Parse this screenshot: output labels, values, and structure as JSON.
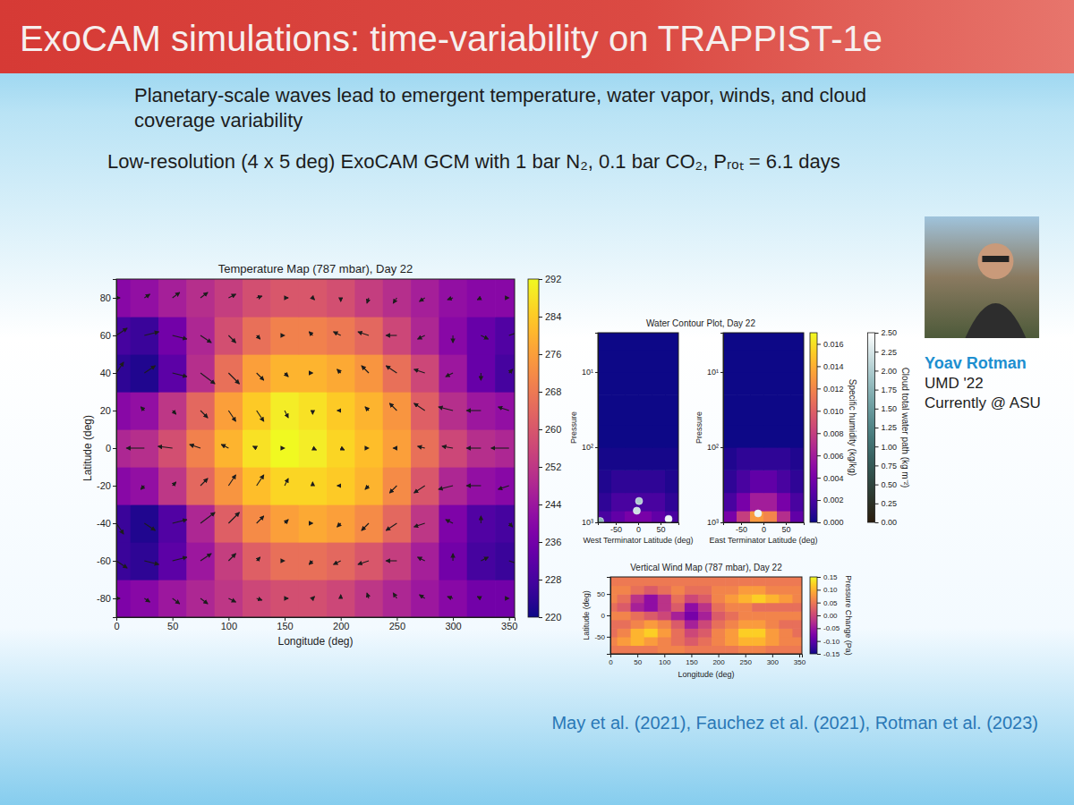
{
  "slide": {
    "title": "ExoCAM simulations: time-variability on TRAPPIST-1e",
    "subtitle": "Planetary-scale waves lead to emergent temperature, water vapor, winds, and cloud coverage variability",
    "description": "Low-resolution (4 x 5 deg) ExoCAM GCM with 1 bar N₂, 0.1 bar CO₂, Pᵣₒₜ = 6.1 days",
    "person": {
      "name": "Yoav Rotman",
      "lines": [
        "UMD '22",
        "Currently @ ASU"
      ]
    },
    "references": "May et al. (2021), Fauchez et al. (2021), Rotman et al. (2023)"
  },
  "chart_data": [
    {
      "type": "heatmap",
      "title": "Temperature Map (787 mbar), Day 22",
      "x_label": "Longitude (deg)",
      "y_label": "Latitude (deg)",
      "x": [
        0,
        25,
        50,
        75,
        100,
        125,
        150,
        175,
        200,
        225,
        250,
        275,
        300,
        325,
        350
      ],
      "y": [
        -80,
        -60,
        -40,
        -20,
        0,
        20,
        40,
        60,
        80
      ],
      "cells": [
        [
          238,
          240,
          244,
          248,
          252,
          256,
          258,
          258,
          256,
          252,
          248,
          244,
          240,
          236,
          236
        ],
        [
          226,
          224,
          232,
          244,
          254,
          262,
          266,
          266,
          264,
          260,
          254,
          246,
          236,
          228,
          226
        ],
        [
          226,
          222,
          230,
          248,
          262,
          272,
          276,
          278,
          276,
          272,
          264,
          252,
          238,
          230,
          228
        ],
        [
          240,
          242,
          252,
          264,
          274,
          282,
          286,
          286,
          284,
          280,
          272,
          260,
          248,
          242,
          240
        ],
        [
          248,
          250,
          258,
          270,
          280,
          288,
          292,
          290,
          286,
          282,
          276,
          266,
          256,
          250,
          248
        ],
        [
          240,
          242,
          252,
          264,
          276,
          284,
          290,
          288,
          284,
          280,
          274,
          262,
          250,
          244,
          242
        ],
        [
          224,
          222,
          232,
          250,
          266,
          276,
          280,
          280,
          278,
          274,
          266,
          256,
          244,
          234,
          228
        ],
        [
          228,
          226,
          236,
          248,
          258,
          266,
          270,
          270,
          268,
          264,
          256,
          248,
          240,
          234,
          230
        ],
        [
          240,
          242,
          246,
          250,
          254,
          258,
          260,
          260,
          258,
          254,
          250,
          246,
          242,
          240,
          240
        ]
      ],
      "wind_u": [
        [
          2,
          3,
          4,
          4,
          4,
          3,
          2,
          1,
          0,
          -1,
          -2,
          -3,
          -3,
          -2,
          0
        ],
        [
          6,
          8,
          8,
          6,
          4,
          2,
          0,
          -2,
          -4,
          -6,
          -6,
          -4,
          0,
          4,
          6
        ],
        [
          4,
          6,
          8,
          8,
          6,
          4,
          2,
          0,
          -2,
          -4,
          -6,
          -6,
          -4,
          0,
          2
        ],
        [
          -4,
          -2,
          2,
          4,
          4,
          4,
          2,
          0,
          -2,
          -2,
          -4,
          -6,
          -8,
          -8,
          -6
        ],
        [
          -10,
          -10,
          -8,
          -6,
          -4,
          -2,
          0,
          2,
          2,
          0,
          -2,
          -4,
          -6,
          -8,
          -10
        ],
        [
          -4,
          -2,
          2,
          4,
          4,
          4,
          2,
          0,
          -2,
          -2,
          -4,
          -6,
          -8,
          -8,
          -6
        ],
        [
          4,
          6,
          8,
          8,
          6,
          4,
          2,
          0,
          -2,
          -4,
          -6,
          -6,
          -4,
          0,
          2
        ],
        [
          6,
          8,
          8,
          6,
          4,
          2,
          0,
          -2,
          -4,
          -6,
          -6,
          -4,
          0,
          4,
          6
        ],
        [
          2,
          3,
          4,
          4,
          4,
          3,
          2,
          1,
          0,
          -1,
          -2,
          -3,
          -3,
          -2,
          0
        ]
      ],
      "wind_v": [
        [
          0,
          -2,
          -3,
          -3,
          -2,
          -1,
          0,
          1,
          2,
          3,
          3,
          2,
          1,
          1,
          0
        ],
        [
          -4,
          -2,
          2,
          4,
          4,
          2,
          0,
          -2,
          -2,
          -2,
          0,
          2,
          4,
          2,
          -2
        ],
        [
          -6,
          -4,
          2,
          6,
          6,
          4,
          2,
          0,
          -2,
          -4,
          -4,
          -2,
          2,
          4,
          -2
        ],
        [
          -4,
          -2,
          2,
          4,
          6,
          6,
          4,
          2,
          0,
          -2,
          -4,
          -4,
          -2,
          0,
          -2
        ],
        [
          0,
          0,
          1,
          2,
          2,
          1,
          0,
          -1,
          -1,
          0,
          0,
          1,
          1,
          0,
          0
        ],
        [
          4,
          2,
          -2,
          -4,
          -6,
          -6,
          -4,
          -2,
          0,
          2,
          4,
          4,
          2,
          0,
          2
        ],
        [
          6,
          4,
          -2,
          -6,
          -6,
          -4,
          -2,
          0,
          2,
          4,
          4,
          2,
          -2,
          -4,
          2
        ],
        [
          4,
          2,
          -2,
          -4,
          -4,
          -2,
          0,
          2,
          2,
          2,
          0,
          -2,
          -4,
          -2,
          2
        ],
        [
          0,
          2,
          3,
          3,
          2,
          1,
          0,
          -1,
          -2,
          -3,
          -3,
          -2,
          -1,
          -1,
          0
        ]
      ],
      "xlim": [
        0,
        355
      ],
      "ylim": [
        -90,
        90
      ],
      "xticks": [
        0,
        50,
        100,
        150,
        200,
        250,
        300,
        350
      ],
      "yticks": [
        -80,
        -60,
        -40,
        -20,
        0,
        20,
        40,
        60,
        80
      ],
      "colorbar": {
        "lim": [
          220,
          292
        ],
        "ticks": [
          220,
          228,
          236,
          244,
          252,
          260,
          268,
          276,
          284,
          292
        ]
      }
    },
    {
      "type": "heatmap",
      "title": "Water Contour Plot, Day 22",
      "x_label": "West Terminator Latitude (deg)",
      "y_label": "Pressure",
      "log": "y",
      "x_edges": [
        -90,
        -60,
        -30,
        0,
        30,
        60,
        90
      ],
      "y_edges": [
        1000,
        700,
        400,
        200,
        100,
        50,
        20,
        10,
        5,
        3
      ],
      "cells": [
        [
          0.002,
          0.003,
          0.004,
          0.004,
          0.003,
          0.002
        ],
        [
          0.001,
          0.002,
          0.002,
          0.002,
          0.002,
          0.001
        ],
        [
          0.0005,
          0.001,
          0.001,
          0.001,
          0.001,
          0.0005
        ],
        [
          0.0002,
          0.0002,
          0.0002,
          0.0002,
          0.0002,
          0.0002
        ],
        [
          0,
          0,
          0,
          0,
          0,
          0
        ],
        [
          0,
          0,
          0,
          0,
          0,
          0
        ],
        [
          0,
          0,
          0,
          0,
          0,
          0
        ],
        [
          0,
          0,
          0,
          0,
          0,
          0
        ],
        [
          0,
          0,
          0,
          0,
          0,
          0
        ]
      ],
      "clouds": {
        "lat": [
          -3,
          2,
          68,
          -85
        ],
        "pressure": [
          700,
          520,
          900,
          960
        ],
        "values": [
          2.2,
          2.0,
          2.4,
          1.8
        ]
      },
      "xlim": [
        -90,
        90
      ],
      "ylim": [
        3,
        1000
      ],
      "xticks": [
        -50,
        0,
        50
      ],
      "yticks": [
        {
          "value": 10,
          "label": "10¹"
        },
        {
          "value": 100,
          "label": "10²"
        },
        {
          "value": 1000,
          "label": "10³"
        }
      ]
    },
    {
      "type": "heatmap",
      "x_label": "East Terminator Latitude (deg)",
      "y_label": "Pressure",
      "log": "y",
      "x_edges": [
        -90,
        -60,
        -30,
        0,
        30,
        60,
        90
      ],
      "y_edges": [
        1000,
        700,
        400,
        200,
        100,
        50,
        20,
        10,
        5,
        3
      ],
      "cells": [
        [
          0.004,
          0.008,
          0.013,
          0.012,
          0.007,
          0.003
        ],
        [
          0.002,
          0.004,
          0.006,
          0.006,
          0.004,
          0.002
        ],
        [
          0.001,
          0.002,
          0.003,
          0.003,
          0.002,
          0.001
        ],
        [
          0.0005,
          0.001,
          0.001,
          0.001,
          0.001,
          0.0005
        ],
        [
          0,
          0,
          0,
          0,
          0,
          0
        ],
        [
          0,
          0,
          0,
          0,
          0,
          0
        ],
        [
          0,
          0,
          0,
          0,
          0,
          0
        ],
        [
          0,
          0,
          0,
          0,
          0,
          0
        ],
        [
          0,
          0,
          0,
          0,
          0,
          0
        ]
      ],
      "clouds": {
        "lat": [
          -12
        ],
        "pressure": [
          760
        ],
        "values": [
          2.4
        ]
      },
      "xlim": [
        -90,
        90
      ],
      "ylim": [
        3,
        1000
      ],
      "xticks": [
        -50,
        0,
        50
      ],
      "yticks": [
        {
          "value": 10,
          "label": "10¹"
        },
        {
          "value": 100,
          "label": "10²"
        },
        {
          "value": 1000,
          "label": "10³"
        }
      ],
      "colorbar": {
        "label": "Specific humidity (kg/kg)",
        "lim": [
          0,
          0.017
        ],
        "ticks": [
          {
            "value": 0,
            "label": "0.000"
          },
          {
            "value": 0.002,
            "label": "0.002"
          },
          {
            "value": 0.004,
            "label": "0.004"
          },
          {
            "value": 0.006,
            "label": "0.006"
          },
          {
            "value": 0.008,
            "label": "0.008"
          },
          {
            "value": 0.01,
            "label": "0.010"
          },
          {
            "value": 0.012,
            "label": "0.012"
          },
          {
            "value": 0.014,
            "label": "0.014"
          },
          {
            "value": 0.016,
            "label": "0.016"
          }
        ]
      },
      "cloud_colorbar": {
        "label": "Cloud total water path (kg m⁻²)",
        "lim": [
          0,
          2.5
        ],
        "ticks": [
          {
            "value": 0,
            "label": "0.00"
          },
          {
            "value": 0.25,
            "label": "0.25"
          },
          {
            "value": 0.5,
            "label": "0.50"
          },
          {
            "value": 0.75,
            "label": "0.75"
          },
          {
            "value": 1,
            "label": "1.00"
          },
          {
            "value": 1.25,
            "label": "1.25"
          },
          {
            "value": 1.5,
            "label": "1.50"
          },
          {
            "value": 1.75,
            "label": "1.75"
          },
          {
            "value": 2,
            "label": "2.00"
          },
          {
            "value": 2.25,
            "label": "2.25"
          },
          {
            "value": 2.5,
            "label": "2.50"
          }
        ]
      }
    },
    {
      "type": "heatmap",
      "title": "Vertical Wind Map (787 mbar), Day 22",
      "x_label": "Longitude (deg)",
      "y_label": "Latitude (deg)",
      "x": [
        0,
        25,
        50,
        75,
        100,
        125,
        150,
        175,
        200,
        225,
        250,
        275,
        300,
        325,
        350
      ],
      "y": [
        -80,
        -60,
        -40,
        -20,
        0,
        20,
        40,
        60,
        80
      ],
      "cells": [
        [
          0.05,
          0.05,
          0.05,
          0.05,
          0.06,
          0.06,
          0.05,
          0.05,
          0.05,
          0.05,
          0.06,
          0.06,
          0.05,
          0.05,
          0.05
        ],
        [
          0.06,
          0.08,
          0.1,
          0.08,
          0.06,
          0.04,
          0.02,
          0.04,
          0.06,
          0.08,
          0.1,
          0.1,
          0.08,
          0.06,
          0.06
        ],
        [
          0.04,
          0.06,
          0.1,
          0.12,
          0.08,
          0.04,
          0,
          0.02,
          0.06,
          0.08,
          0.12,
          0.12,
          0.08,
          0.06,
          0.04
        ],
        [
          0.04,
          0.04,
          0.06,
          0.08,
          0.06,
          0.02,
          -0.04,
          0,
          0.04,
          0.06,
          0.08,
          0.08,
          0.06,
          0.04,
          0.04
        ],
        [
          0.06,
          0.06,
          0.04,
          0.02,
          0,
          -0.04,
          -0.08,
          -0.04,
          0.02,
          0.04,
          0.06,
          0.06,
          0.06,
          0.06,
          0.06
        ],
        [
          0.04,
          0.02,
          -0.04,
          -0.06,
          -0.02,
          0.02,
          -0.06,
          -0.02,
          0.04,
          0.06,
          0.06,
          0.04,
          0.04,
          0.04,
          0.04
        ],
        [
          0.06,
          0.04,
          -0.02,
          -0.06,
          -0.02,
          0.04,
          0,
          0.02,
          0.06,
          0.08,
          0.1,
          0.12,
          0.1,
          0.08,
          0.06
        ],
        [
          0.06,
          0.06,
          0.04,
          0.02,
          0.04,
          0.06,
          0.04,
          0.04,
          0.06,
          0.06,
          0.08,
          0.08,
          0.06,
          0.06,
          0.06
        ],
        [
          0.05,
          0.05,
          0.05,
          0.05,
          0.05,
          0.05,
          0.05,
          0.05,
          0.05,
          0.05,
          0.05,
          0.05,
          0.05,
          0.05,
          0.05
        ]
      ],
      "xlim": [
        0,
        355
      ],
      "ylim": [
        -90,
        90
      ],
      "xticks": [
        0,
        50,
        100,
        150,
        200,
        250,
        300,
        350
      ],
      "yticks": [
        -50,
        0,
        50
      ],
      "colorbar": {
        "label": "Pressure Change (Pa)",
        "lim": [
          -0.15,
          0.15
        ],
        "ticks": [
          {
            "value": -0.15,
            "label": "-0.15"
          },
          {
            "value": -0.1,
            "label": "-0.10"
          },
          {
            "value": -0.05,
            "label": "-0.05"
          },
          {
            "value": 0,
            "label": "0.00"
          },
          {
            "value": 0.05,
            "label": "0.05"
          },
          {
            "value": 0.1,
            "label": "0.10"
          },
          {
            "value": 0.15,
            "label": "0.15"
          }
        ]
      }
    }
  ]
}
